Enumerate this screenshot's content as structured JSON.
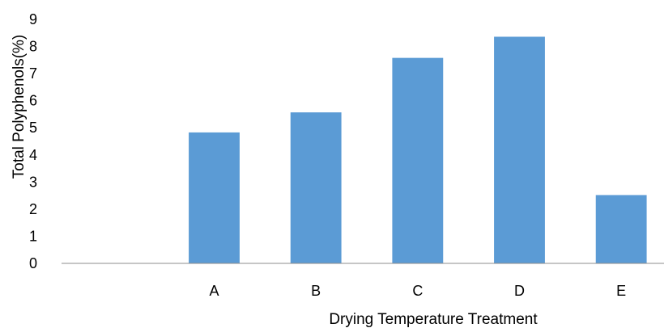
{
  "chart_data": {
    "type": "bar",
    "title": "",
    "xlabel": "Drying Temperature  Treatment",
    "ylabel": "Total Polyphenols(%)",
    "categories": [
      "",
      "A",
      "B",
      "C",
      "D",
      "E"
    ],
    "values": [
      null,
      4.83,
      5.57,
      7.58,
      8.36,
      2.52
    ],
    "ylim": [
      0,
      9
    ],
    "yticks": [
      "0",
      "1",
      "2",
      "3",
      "4",
      "5",
      "6",
      "7",
      "8",
      "9"
    ],
    "grid": false,
    "legend": "none",
    "bar_color": "#5B9BD5"
  }
}
